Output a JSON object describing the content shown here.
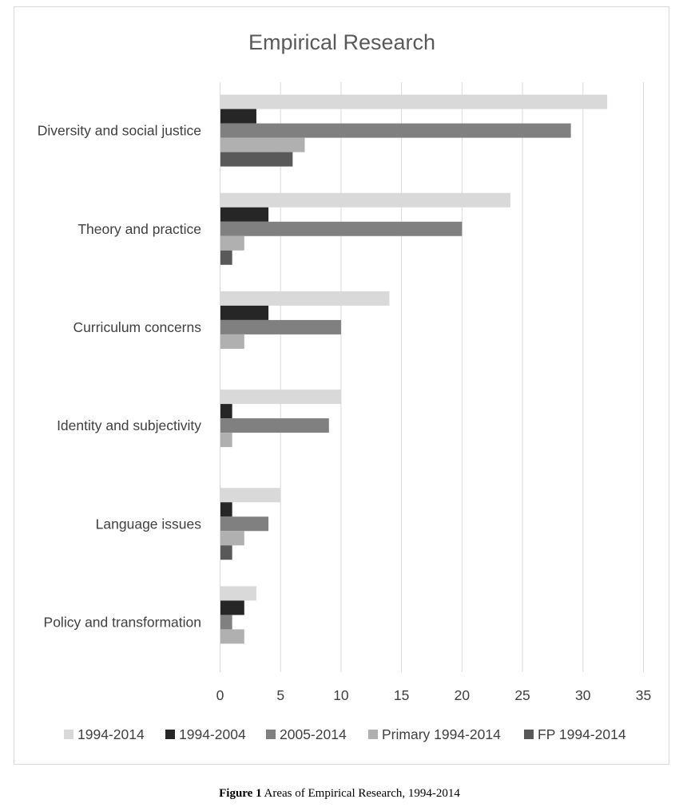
{
  "chart_data": {
    "type": "bar",
    "orientation": "horizontal",
    "title": "Empirical Research",
    "xlabel": "",
    "ylabel": "",
    "xlim": [
      0,
      35
    ],
    "x_ticks": [
      0,
      5,
      10,
      15,
      20,
      25,
      30,
      35
    ],
    "gridlines": true,
    "legend_position": "bottom",
    "categories": [
      "Diversity and social justice",
      "Theory and practice",
      "Curriculum concerns",
      "Identity and subjectivity",
      "Language issues",
      "Policy and transformation"
    ],
    "series": [
      {
        "name": "1994-2014",
        "color": "#d9d9d9",
        "values": [
          32,
          24,
          14,
          10,
          5,
          3
        ]
      },
      {
        "name": "1994-2004",
        "color": "#262626",
        "values": [
          3,
          4,
          4,
          1,
          1,
          2
        ]
      },
      {
        "name": "2005-2014",
        "color": "#808080",
        "values": [
          29,
          20,
          10,
          9,
          4,
          1
        ]
      },
      {
        "name": "Primary 1994-2014",
        "color": "#b0b0b0",
        "values": [
          7,
          2,
          2,
          1,
          2,
          2
        ]
      },
      {
        "name": "FP 1994-2014",
        "color": "#595959",
        "values": [
          6,
          1,
          0,
          0,
          1,
          0
        ]
      }
    ]
  },
  "caption": {
    "label": "Figure 1",
    "text": " Areas of Empirical Research, 1994-2014"
  }
}
